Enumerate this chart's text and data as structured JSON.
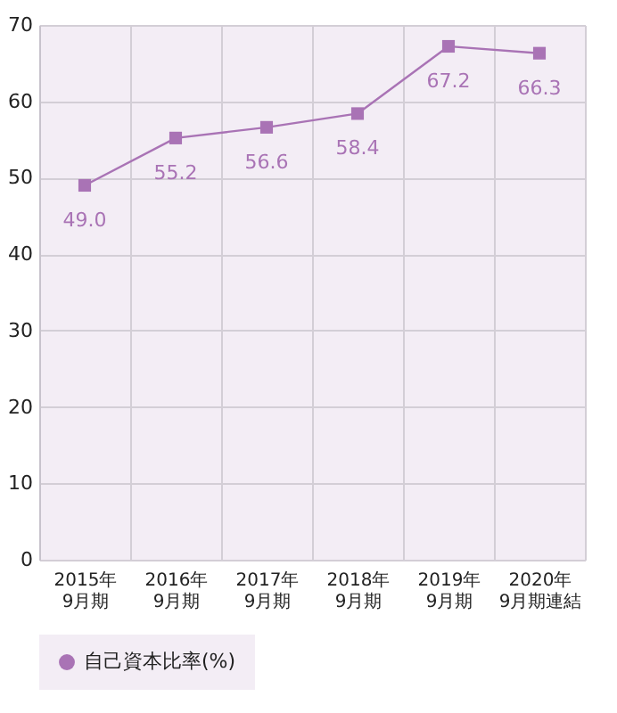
{
  "chart_data": {
    "type": "line",
    "categories": [
      "2015年 9月期",
      "2016年 9月期",
      "2017年 9月期",
      "2018年 9月期",
      "2019年 9月期",
      "2020年 9月期連結"
    ],
    "series": [
      {
        "name": "自己資本比率(%)",
        "color": "#a973b5",
        "values": [
          49.0,
          55.2,
          56.6,
          58.4,
          67.2,
          66.3
        ],
        "value_labels": [
          "49.0",
          "55.2",
          "56.6",
          "58.4",
          "67.2",
          "66.3"
        ]
      }
    ],
    "ylim": [
      0,
      70
    ],
    "yticks": [
      0,
      10,
      20,
      30,
      40,
      50,
      60,
      70
    ],
    "grid": true,
    "legend": "bottom",
    "marker": "square",
    "line_style": "solid"
  }
}
